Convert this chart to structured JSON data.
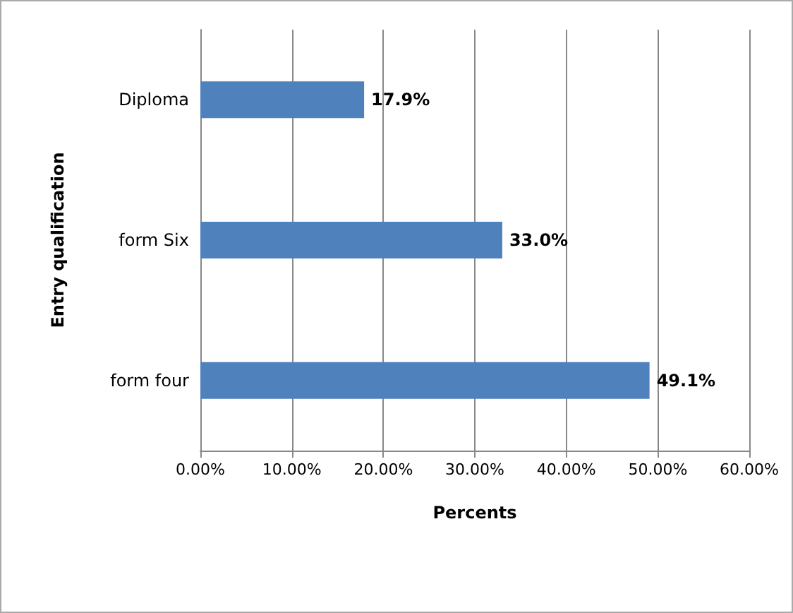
{
  "chart_data": {
    "type": "bar",
    "orientation": "horizontal",
    "xlabel": "Percents",
    "ylabel": "Entry qualification",
    "categories": [
      "Diploma",
      "form Six",
      "form four"
    ],
    "values": [
      17.9,
      33.0,
      49.1
    ],
    "value_labels": [
      "17.9%",
      "33.0%",
      "49.1%"
    ],
    "color": "#4f81bd",
    "xlim": [
      0,
      60
    ],
    "xticks": [
      {
        "value": 0,
        "label": "0.00%"
      },
      {
        "value": 10,
        "label": "10.00%"
      },
      {
        "value": 20,
        "label": "20.00%"
      },
      {
        "value": 30,
        "label": "30.00%"
      },
      {
        "value": 40,
        "label": "40.00%"
      },
      {
        "value": 50,
        "label": "50.00%"
      },
      {
        "value": 60,
        "label": "60.00%"
      }
    ],
    "grid": "x"
  }
}
